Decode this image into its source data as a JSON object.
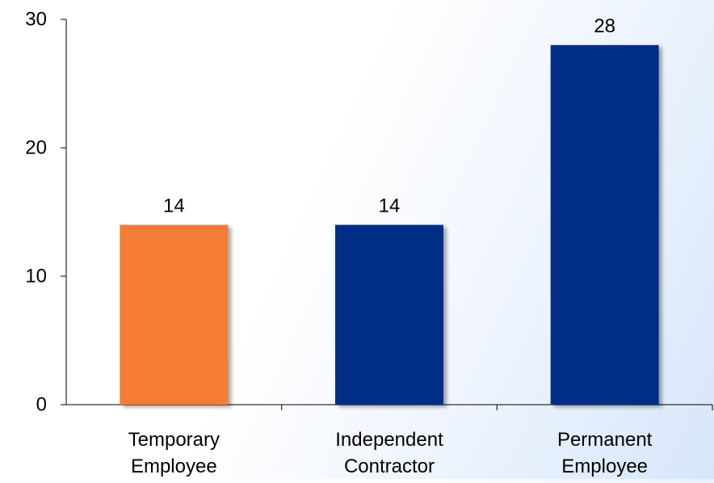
{
  "chart_data": {
    "type": "bar",
    "title": "",
    "xlabel": "",
    "ylabel": "",
    "categories": [
      [
        "Temporary",
        "Employee"
      ],
      [
        "Independent",
        "Contractor"
      ],
      [
        "Permanent",
        "Employee"
      ]
    ],
    "values": [
      14,
      14,
      28
    ],
    "data_labels": [
      "14",
      "14",
      "28"
    ],
    "bar_colors": [
      "#F47B35",
      "#002D87",
      "#002D87"
    ],
    "ylim": [
      0,
      30
    ],
    "yticks": [
      0,
      10,
      20,
      30
    ],
    "ytick_labels": [
      "0",
      "10",
      "20",
      "30"
    ],
    "grid": false,
    "legend": "none"
  }
}
